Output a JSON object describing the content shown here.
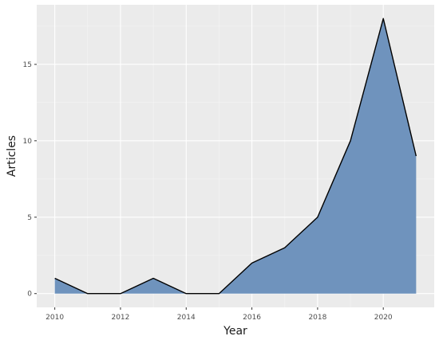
{
  "chart_data": {
    "type": "area",
    "title": "",
    "xlabel": "Year",
    "ylabel": "Articles",
    "x": [
      2010,
      2011,
      2012,
      2013,
      2014,
      2015,
      2016,
      2017,
      2018,
      2019,
      2020,
      2021
    ],
    "series": [
      {
        "values": [
          1,
          0,
          0,
          1,
          0,
          0,
          2,
          3,
          5,
          10,
          18,
          9
        ]
      }
    ],
    "xlim": [
      2009.45,
      2021.55
    ],
    "ylim": [
      -0.9,
      18.9
    ],
    "x_ticks": [
      2010,
      2012,
      2014,
      2016,
      2018,
      2020
    ],
    "y_ticks": [
      0,
      5,
      10,
      15
    ],
    "grid": true,
    "colors": {
      "fill": "#6f93bd",
      "line": "#000000",
      "panel": "#ebebeb",
      "grid_major": "#ffffff",
      "grid_minor": "#f5f5f5"
    }
  }
}
